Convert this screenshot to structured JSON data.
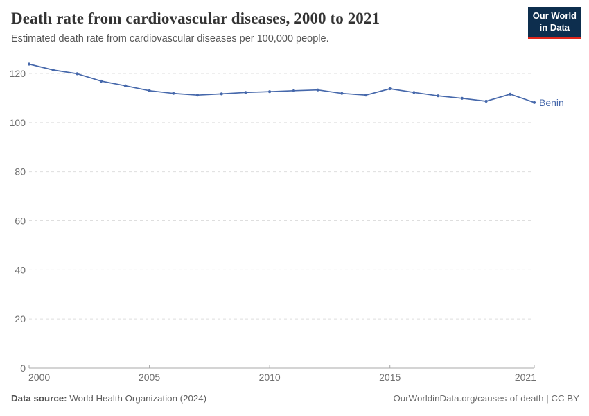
{
  "chart_data": {
    "type": "line",
    "title": "Death rate from cardiovascular diseases, 2000 to 2021",
    "subtitle": "Estimated death rate from cardiovascular diseases per 100,000 people.",
    "xlabel": "",
    "ylabel": "",
    "x_ticks": [
      2000,
      2005,
      2010,
      2015,
      2021
    ],
    "y_ticks": [
      0,
      20,
      40,
      60,
      80,
      100,
      120
    ],
    "xlim": [
      2000,
      2021
    ],
    "ylim": [
      0,
      126
    ],
    "grid": "horizontal-dashed",
    "legend_position": "end-of-line-label",
    "series": [
      {
        "name": "Benin",
        "color": "#4668ab",
        "x": [
          2000,
          2001,
          2002,
          2003,
          2004,
          2005,
          2006,
          2007,
          2008,
          2009,
          2010,
          2011,
          2012,
          2013,
          2014,
          2015,
          2016,
          2017,
          2018,
          2019,
          2020,
          2021
        ],
        "values": [
          123.8,
          121.4,
          119.9,
          116.9,
          115.0,
          113.0,
          111.9,
          111.2,
          111.7,
          112.3,
          112.6,
          113.0,
          113.3,
          111.9,
          111.2,
          113.8,
          112.3,
          110.9,
          109.9,
          108.7,
          111.6,
          108.2
        ]
      }
    ]
  },
  "logo": {
    "line1": "Our World",
    "line2": "in Data",
    "bg_color": "#0d2e4e",
    "accent_color": "#e0271c"
  },
  "footer": {
    "source_label": "Data source:",
    "source_value": "World Health Organization (2024)",
    "credit": "OurWorldinData.org/causes-of-death | CC BY"
  },
  "colors": {
    "grid": "#dedede",
    "axis": "#a8a8a8",
    "tick_label": "#6e6e6e"
  }
}
